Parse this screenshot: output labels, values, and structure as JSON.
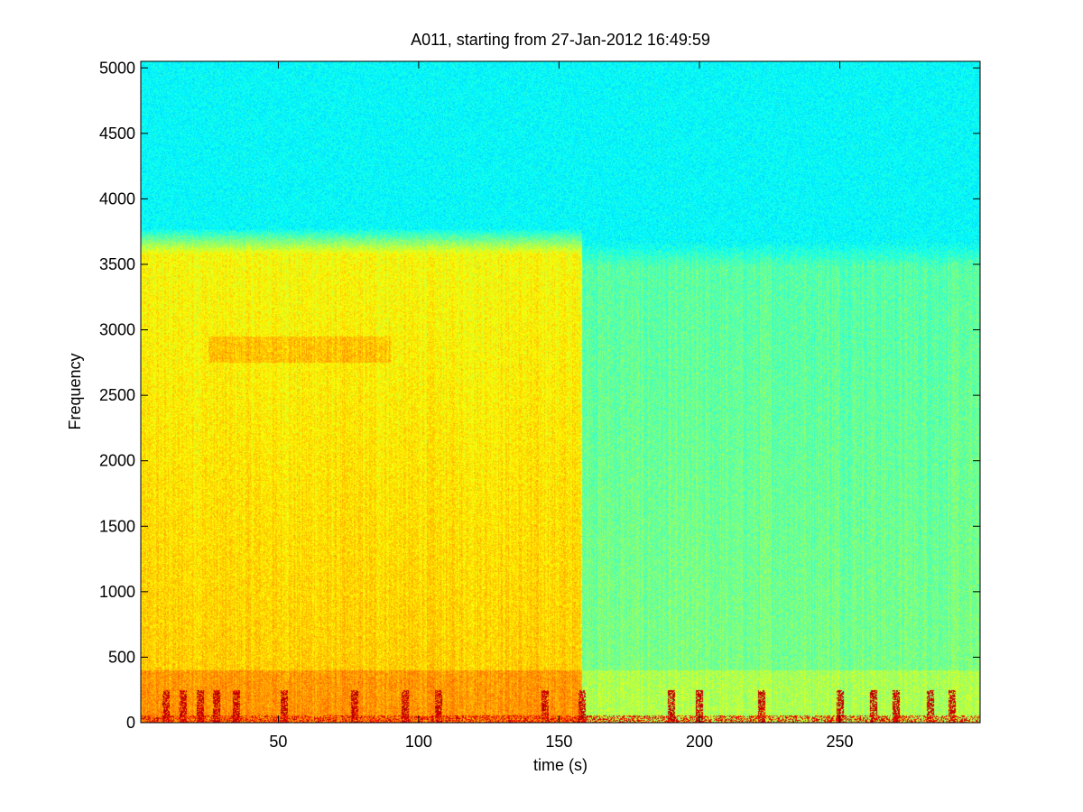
{
  "chart_data": {
    "type": "heatmap",
    "title": "A011, starting from 27-Jan-2012 16:49:59",
    "xlabel": "time (s)",
    "ylabel": "Frequency",
    "xlim": [
      1,
      300
    ],
    "ylim": [
      0,
      5050
    ],
    "xticks": [
      50,
      100,
      150,
      200,
      250
    ],
    "yticks": [
      0,
      500,
      1000,
      1500,
      2000,
      2500,
      3000,
      3500,
      4000,
      4500,
      5000
    ],
    "grid": false,
    "legend": "none",
    "colormap": "jet",
    "segments": [
      {
        "x_start": 1,
        "x_end": 158,
        "energy_cutoff_hz": 3700,
        "level": "high"
      },
      {
        "x_start": 158,
        "x_end": 300,
        "energy_cutoff_hz": 3600,
        "level": "medium"
      }
    ],
    "transient_times": [
      10,
      16,
      22,
      28,
      35,
      52,
      77,
      95,
      107,
      145,
      158,
      190,
      200,
      222,
      250,
      262,
      270,
      282,
      290
    ]
  }
}
